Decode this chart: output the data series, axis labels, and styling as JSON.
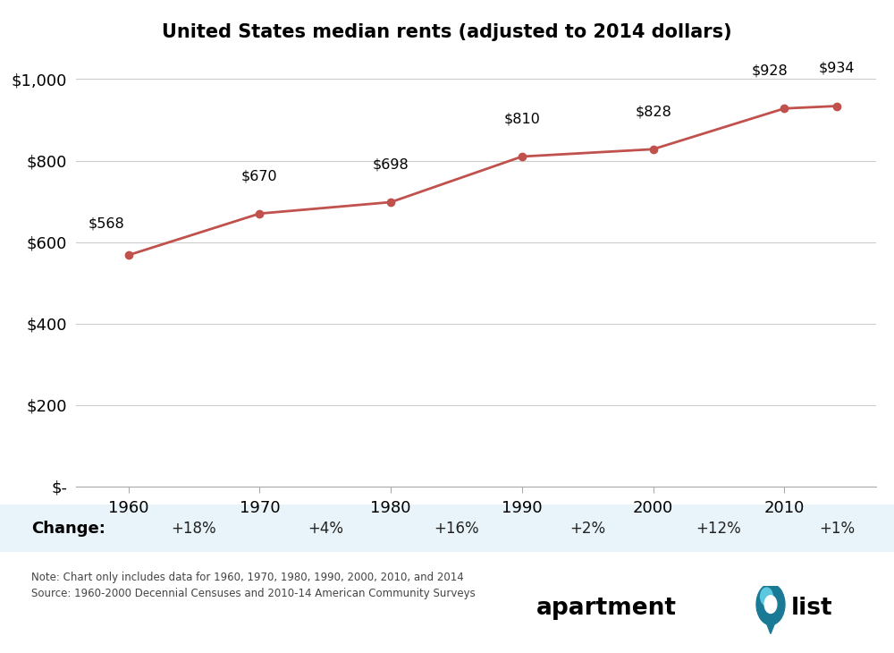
{
  "title": "United States median rents (adjusted to 2014 dollars)",
  "years": [
    1960,
    1965,
    1970,
    1975,
    1980,
    1985,
    1990,
    1995,
    2000,
    2005,
    2010,
    2014
  ],
  "x_ticks": [
    1960,
    1970,
    1980,
    1990,
    2000,
    2010
  ],
  "values": [
    568,
    619,
    670,
    684,
    698,
    754,
    810,
    819,
    828,
    878,
    928,
    934
  ],
  "labeled_years": [
    1960,
    1970,
    1980,
    1990,
    2000,
    2010,
    2014
  ],
  "labeled_values": [
    568,
    670,
    698,
    810,
    828,
    928,
    934
  ],
  "labeled_texts": [
    "$568",
    "$670",
    "$698",
    "$810",
    "$828",
    "$928",
    "$934"
  ],
  "change_labels": [
    "+18%",
    "+4%",
    "+16%",
    "+2%",
    "+12%",
    "+1%"
  ],
  "change_x": [
    1965,
    1975,
    1985,
    1995,
    2005,
    2014
  ],
  "line_color": "#c0514d",
  "marker_color": "#c0514d",
  "background_color": "#ffffff",
  "grid_color": "#cccccc",
  "ylim": [
    0,
    1050
  ],
  "yticks": [
    0,
    200,
    400,
    600,
    800,
    1000
  ],
  "ytick_labels": [
    "$-",
    "$200",
    "$400",
    "$600",
    "$800",
    "$1,000"
  ],
  "note_line1": "Note: Chart only includes data for 1960, 1970, 1980, 1990, 2000, 2010, and 2014",
  "note_line2": "Source: 1960-2000 Decennial Censuses and 2010-14 American Community Surveys",
  "change_row_label": "Change:",
  "change_bg_color": "#e8f4f9",
  "xlim_left": 1956,
  "xlim_right": 2017
}
